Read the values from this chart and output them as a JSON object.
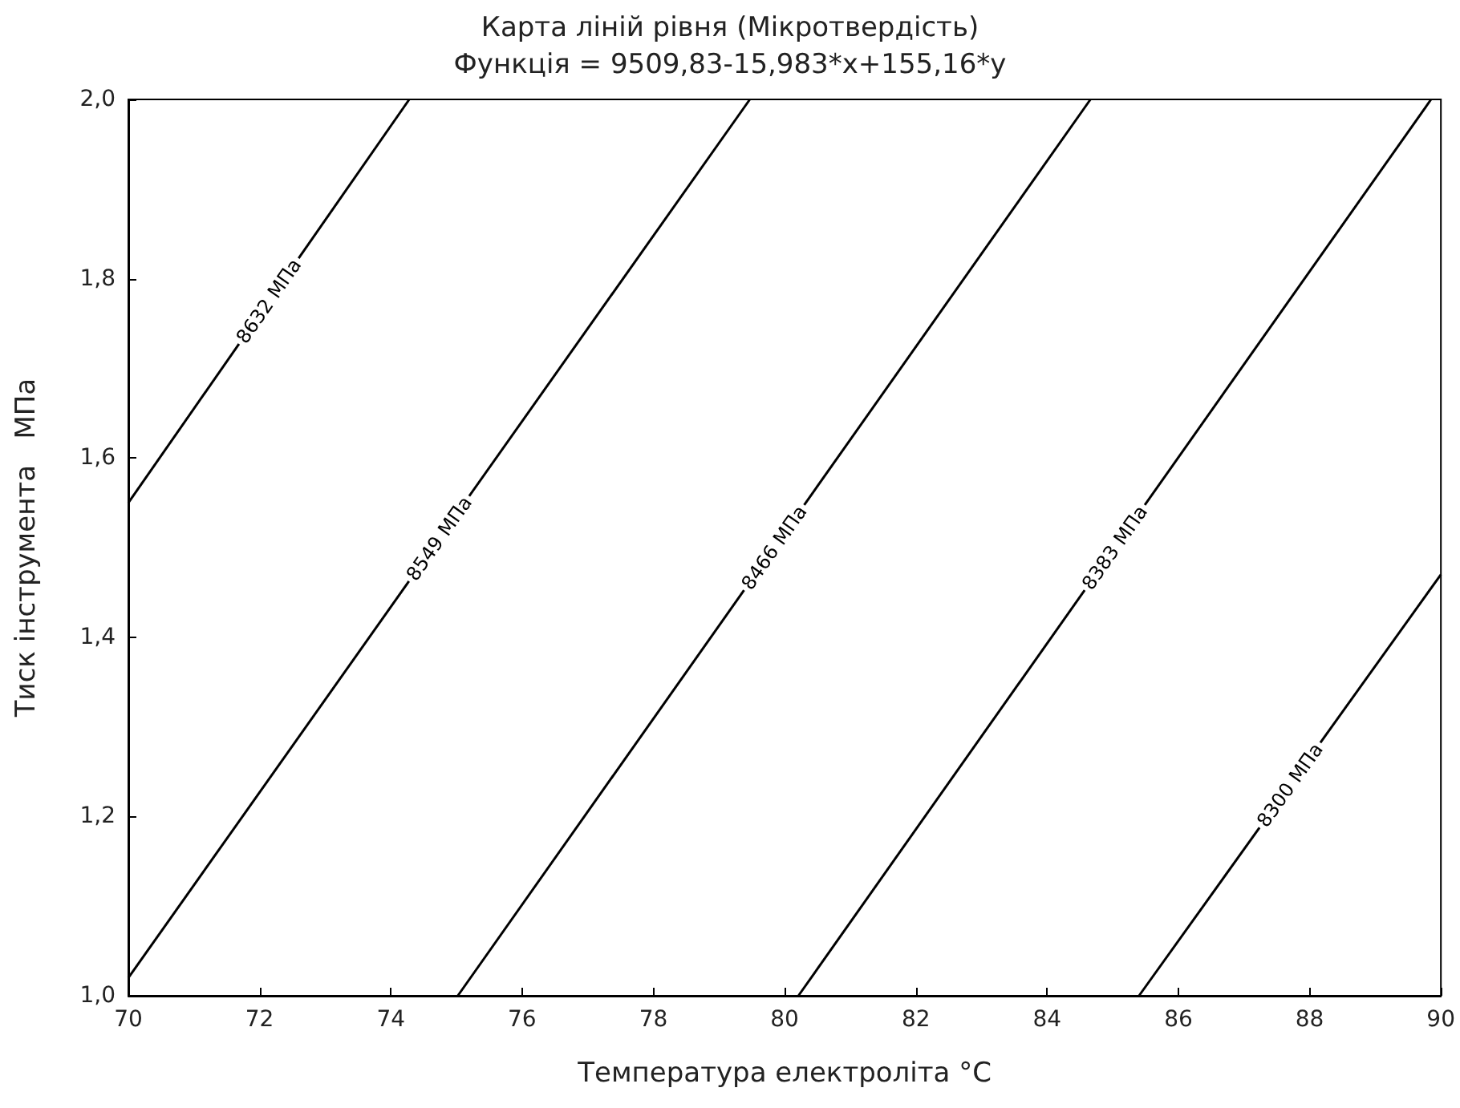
{
  "chart_data": {
    "type": "line",
    "title": "Карта ліній рівня (Мікротвердість)",
    "subtitle": "Функція = 9509,83-15,983*x+155,16*y",
    "xlabel": "Температура електроліта °C",
    "ylabel": "Тиск інструмента   МПа",
    "xlim": [
      70,
      90
    ],
    "xticks": [
      70,
      72,
      74,
      76,
      78,
      80,
      82,
      84,
      86,
      88,
      90
    ],
    "ylim": [
      1,
      2
    ],
    "yticks": [
      {
        "value": 1,
        "label": "1,0"
      },
      {
        "value": 1.2,
        "label": "1,2"
      },
      {
        "value": 1.4,
        "label": "1,4"
      },
      {
        "value": 1.6,
        "label": "1,6"
      },
      {
        "value": 1.8,
        "label": "1,8"
      },
      {
        "value": 2,
        "label": "2,0"
      }
    ],
    "grid": false,
    "legend": false,
    "marker": "none",
    "line_style": "solid",
    "series": [
      {
        "name": "8632 МПа",
        "color": "#000000",
        "x": [
          70,
          74.28
        ],
        "values": [
          1.55,
          2
        ]
      },
      {
        "name": "8549 МПа",
        "color": "#000000",
        "x": [
          70,
          79.47
        ],
        "values": [
          1.02,
          2
        ]
      },
      {
        "name": "8466 МПа",
        "color": "#000000",
        "x": [
          75.02,
          84.66
        ],
        "values": [
          1,
          2
        ]
      },
      {
        "name": "8383 МПа",
        "color": "#000000",
        "x": [
          80.21,
          89.85
        ],
        "values": [
          1,
          2
        ]
      },
      {
        "name": "8300 МПа",
        "color": "#000000",
        "x": [
          85.4,
          90
        ],
        "values": [
          1,
          1.47
        ]
      }
    ]
  }
}
